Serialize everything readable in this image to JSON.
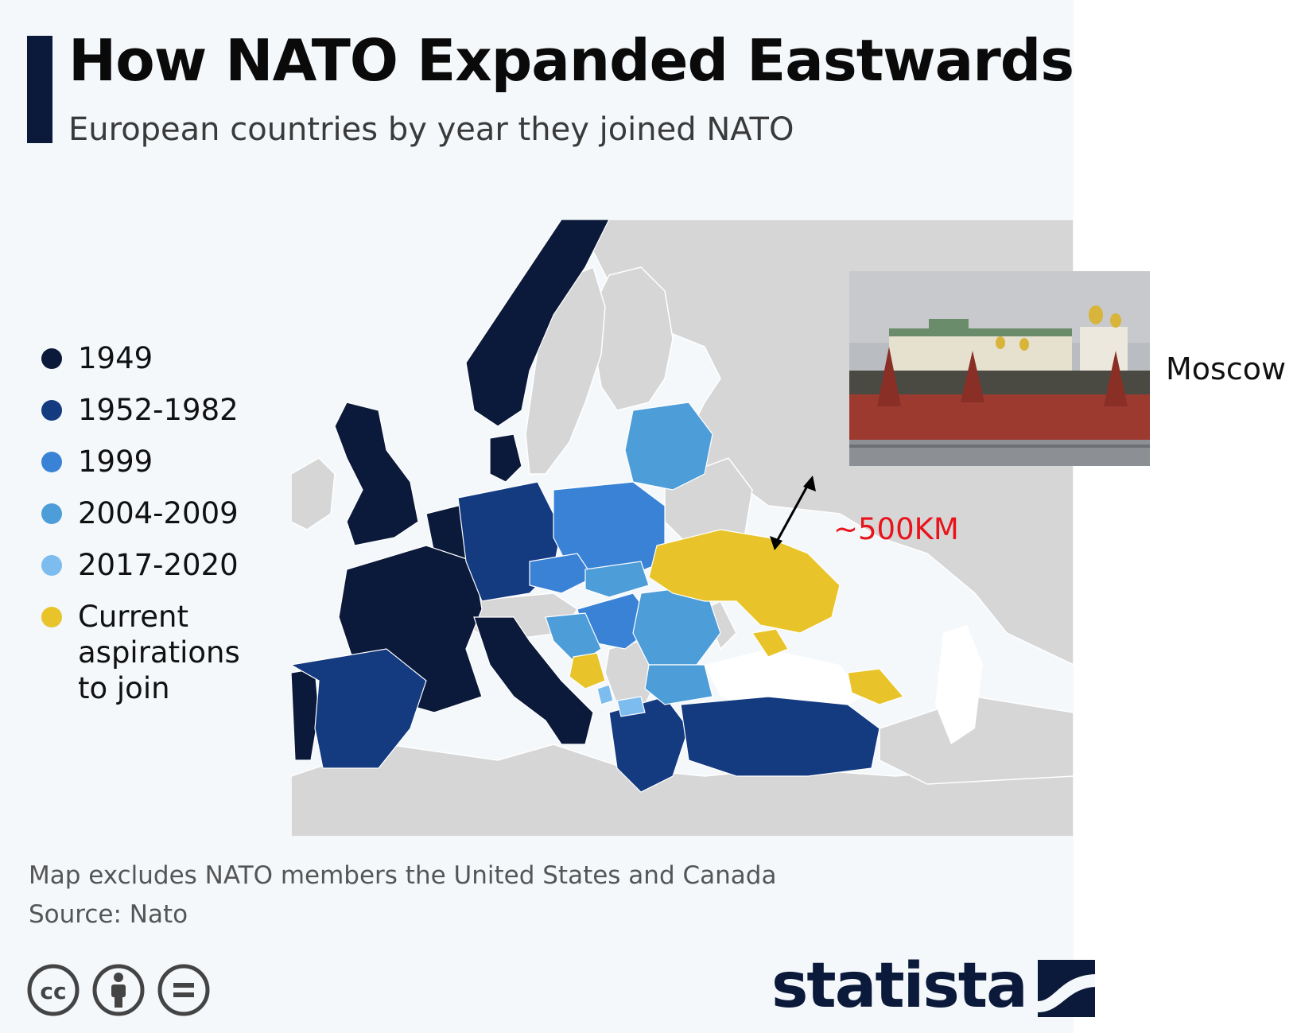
{
  "header": {
    "title": "How NATO Expanded Eastwards",
    "subtitle": "European countries by year they joined NATO"
  },
  "legend": [
    {
      "label": "1949",
      "color": "#0b1a3a"
    },
    {
      "label": "1952-1982",
      "color": "#143a80"
    },
    {
      "label": "1999",
      "color": "#3a82d6"
    },
    {
      "label": "2004-2009",
      "color": "#4d9dd8"
    },
    {
      "label": "2017-2020",
      "color": "#7cbcee"
    },
    {
      "label": "Current aspirations to join",
      "color": "#e8c42a"
    }
  ],
  "colors": {
    "non_member": "#d6d6d6",
    "sea": "#f4f8fb",
    "distance_text": "#e8141b",
    "brand": "#0b1a3a"
  },
  "annotation": {
    "city": "Moscow",
    "distance": "~500KM",
    "photo": "kremlin-photo"
  },
  "footer": {
    "note": "Map excludes NATO members the United States and Canada",
    "source": "Source: Nato",
    "license_icons": [
      "cc-icon",
      "attribution-icon",
      "no-derivatives-icon"
    ],
    "brand": "statista"
  }
}
